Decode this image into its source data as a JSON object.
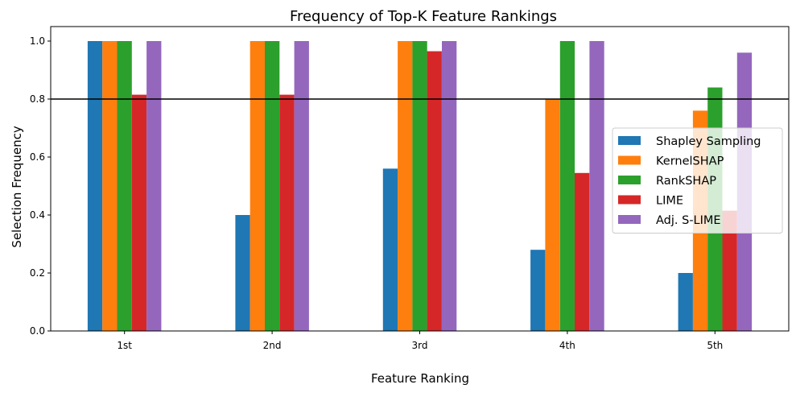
{
  "chart_data": {
    "type": "bar",
    "title": "Frequency of Top-K Feature Rankings",
    "xlabel": "Feature Ranking",
    "ylabel": "Selection Frequency",
    "ylim": [
      0,
      1.05
    ],
    "yticks": [
      "0.0",
      "0.2",
      "0.4",
      "0.6",
      "0.8",
      "1.0"
    ],
    "categories": [
      "1st",
      "2nd",
      "3rd",
      "4th",
      "5th"
    ],
    "series": [
      {
        "name": "Shapley Sampling",
        "color": "#1f77b4",
        "values": [
          1.0,
          0.4,
          0.56,
          0.28,
          0.2
        ]
      },
      {
        "name": "KernelSHAP",
        "color": "#ff7f0e",
        "values": [
          1.0,
          1.0,
          1.0,
          0.8,
          0.76
        ]
      },
      {
        "name": "RankSHAP",
        "color": "#2ca02c",
        "values": [
          1.0,
          1.0,
          1.0,
          1.0,
          0.84
        ]
      },
      {
        "name": "LIME",
        "color": "#d62728",
        "values": [
          0.815,
          0.815,
          0.965,
          0.545,
          0.415
        ]
      },
      {
        "name": "Adj. S-LIME",
        "color": "#9467bd",
        "values": [
          1.0,
          1.0,
          1.0,
          1.0,
          0.96
        ]
      }
    ],
    "reference_line": {
      "y": 0.8,
      "color": "#000000"
    },
    "legend_position": "center-right",
    "grid": false
  }
}
